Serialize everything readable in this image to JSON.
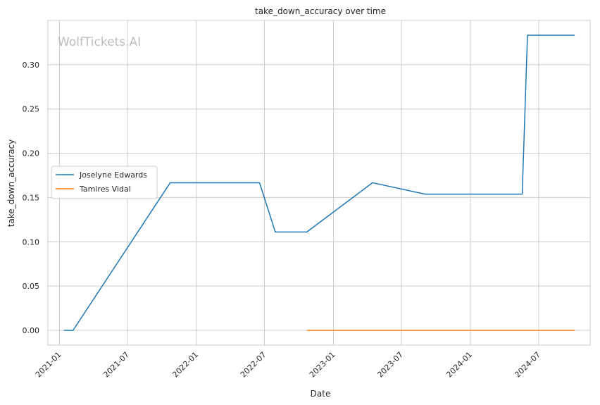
{
  "watermark": "WolfTickets.AI",
  "chart_data": {
    "type": "line",
    "title": "take_down_accuracy over time",
    "xlabel": "Date",
    "ylabel": "take_down_accuracy",
    "xlim": [
      "2020-12-01",
      "2024-11-15"
    ],
    "ylim": [
      -0.0167,
      0.35
    ],
    "x_ticks": [
      "2021-01-01",
      "2021-07-01",
      "2022-01-01",
      "2022-07-01",
      "2023-01-01",
      "2023-07-01",
      "2024-01-01",
      "2024-07-01"
    ],
    "x_tick_labels": [
      "2021-01",
      "2021-07",
      "2022-01",
      "2022-07",
      "2023-01",
      "2023-07",
      "2024-01",
      "2024-07"
    ],
    "y_ticks": [
      0.0,
      0.05,
      0.1,
      0.15,
      0.2,
      0.25,
      0.3
    ],
    "y_tick_labels": [
      "0.00",
      "0.05",
      "0.10",
      "0.15",
      "0.20",
      "0.25",
      "0.30"
    ],
    "grid": true,
    "legend_position": "center-left",
    "series": [
      {
        "name": "Joselyne Edwards",
        "color": "#1f77b4",
        "points": [
          {
            "x": "2021-01-13",
            "y": 0.0
          },
          {
            "x": "2021-02-06",
            "y": 0.0
          },
          {
            "x": "2021-10-23",
            "y": 0.1667
          },
          {
            "x": "2022-06-18",
            "y": 0.1667
          },
          {
            "x": "2022-07-30",
            "y": 0.1111
          },
          {
            "x": "2022-10-22",
            "y": 0.1111
          },
          {
            "x": "2023-04-15",
            "y": 0.1667
          },
          {
            "x": "2023-09-02",
            "y": 0.1538
          },
          {
            "x": "2024-05-18",
            "y": 0.1538
          },
          {
            "x": "2024-06-01",
            "y": 0.3333
          },
          {
            "x": "2024-10-05",
            "y": 0.3333
          }
        ]
      },
      {
        "name": "Tamires Vidal",
        "color": "#ff7f0e",
        "points": [
          {
            "x": "2022-10-22",
            "y": 0.0
          },
          {
            "x": "2024-10-05",
            "y": 0.0
          }
        ]
      }
    ]
  }
}
